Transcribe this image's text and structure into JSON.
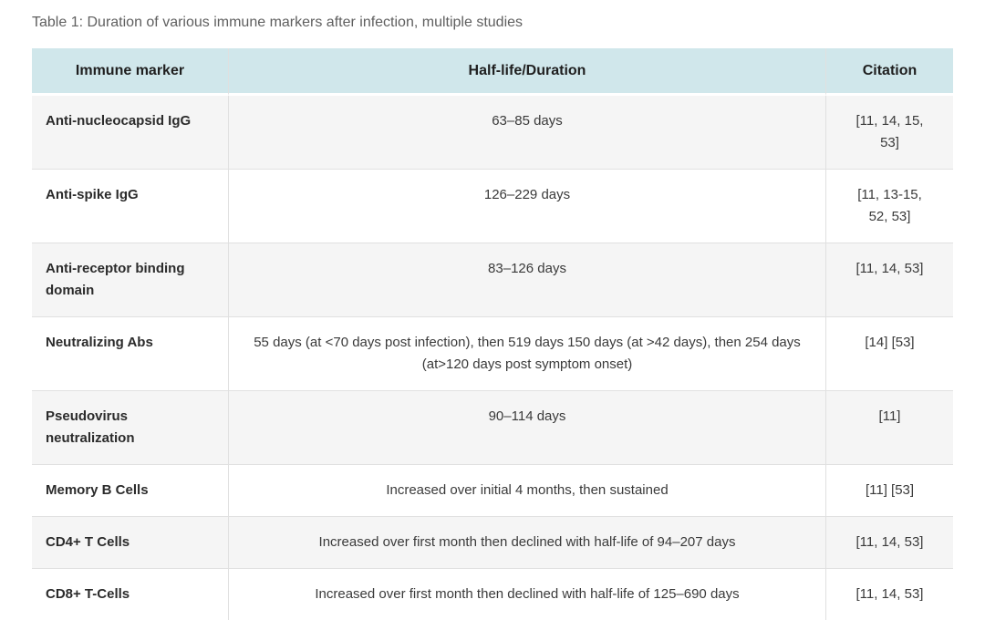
{
  "caption": "Table 1: Duration of various immune markers after infection, multiple studies",
  "table": {
    "columns": [
      "Immune marker",
      "Half-life/Duration",
      "Citation"
    ],
    "rows": [
      {
        "marker": "Anti-nucleocapsid IgG",
        "duration": "63–85 days",
        "citation": "[11, 14, 15, 53]"
      },
      {
        "marker": "Anti-spike IgG",
        "duration": "126–229 days",
        "citation": "[11, 13-15, 52, 53]"
      },
      {
        "marker": "Anti-receptor binding domain",
        "duration": "83–126 days",
        "citation": "[11, 14, 53]"
      },
      {
        "marker": "Neutralizing Abs",
        "duration": "55 days (at <70 days post infection), then 519 days 150 days (at >42 days), then 254 days (at>120 days post symptom onset)",
        "citation": "[14] [53]"
      },
      {
        "marker": "Pseudovirus neutralization",
        "duration": "90–114 days",
        "citation": "[11]"
      },
      {
        "marker": "Memory B Cells",
        "duration": "Increased over initial 4 months, then sustained",
        "citation": "[11] [53]"
      },
      {
        "marker": "CD4+ T Cells",
        "duration": "Increased over first month then declined with half-life of 94–207 days",
        "citation": "[11, 14, 53]"
      },
      {
        "marker": "CD8+ T-Cells",
        "duration": "Increased over first month then declined with half-life of 125–690 days",
        "citation": "[11, 14, 53]"
      }
    ]
  },
  "colors": {
    "header_bg": "#d0e7eb",
    "row_alt_bg": "#f5f5f5",
    "row_bg": "#ffffff",
    "border": "#e0e0e0",
    "caption_text": "#5f5f5f",
    "cell_text": "#3a3a3a",
    "header_text": "#1f1f1f"
  }
}
